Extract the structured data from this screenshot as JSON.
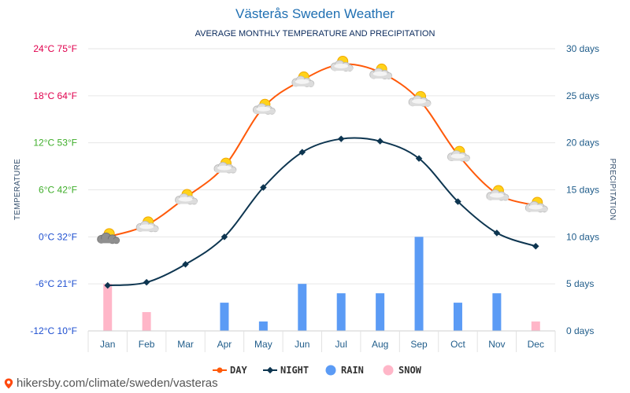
{
  "chart_data": {
    "type": "line",
    "title": "Västerås Sweden Weather",
    "subtitle": "AVERAGE MONTHLY TEMPERATURE AND PRECIPITATION",
    "categories": [
      "Jan",
      "Feb",
      "Mar",
      "Apr",
      "May",
      "Jun",
      "Jul",
      "Aug",
      "Sep",
      "Oct",
      "Nov",
      "Dec"
    ],
    "series": [
      {
        "name": "DAY",
        "unit": "°C",
        "values": [
          0,
          1.5,
          5,
          9,
          16.5,
          20,
          22,
          21,
          17.5,
          10.5,
          5.5,
          4
        ]
      },
      {
        "name": "NIGHT",
        "unit": "°C",
        "values": [
          -6.2,
          -5.8,
          -3.5,
          0,
          6.3,
          10.8,
          12.5,
          12.2,
          10,
          4.5,
          0.5,
          -1.2
        ]
      },
      {
        "name": "RAIN",
        "unit": "days",
        "values": [
          0,
          0,
          0,
          3,
          1,
          5,
          4,
          4,
          10,
          3,
          4,
          0
        ]
      },
      {
        "name": "SNOW",
        "unit": "days",
        "values": [
          5,
          2,
          0,
          0,
          0,
          0,
          0,
          0,
          0,
          0,
          0,
          1
        ]
      }
    ],
    "left_axis": {
      "title": "TEMPERATURE",
      "ylim": [
        -12,
        24
      ],
      "ticks": [
        {
          "value": 24,
          "label": "24°C 75°F",
          "color": "#e0004d"
        },
        {
          "value": 18,
          "label": "18°C 64°F",
          "color": "#e0004d"
        },
        {
          "value": 12,
          "label": "12°C 53°F",
          "color": "#3fae2a"
        },
        {
          "value": 6,
          "label": "6°C 42°F",
          "color": "#3fae2a"
        },
        {
          "value": 0,
          "label": "0°C 32°F",
          "color": "#1e4fd0"
        },
        {
          "value": -6,
          "label": "-6°C 21°F",
          "color": "#1e4fd0"
        },
        {
          "value": -12,
          "label": "-12°C 10°F",
          "color": "#1e4fd0"
        }
      ]
    },
    "right_axis": {
      "title": "PRECIPITATION",
      "ylim": [
        0,
        30
      ],
      "ticks": [
        {
          "value": 30,
          "label": "30 days"
        },
        {
          "value": 25,
          "label": "25 days"
        },
        {
          "value": 20,
          "label": "20 days"
        },
        {
          "value": 15,
          "label": "15 days"
        },
        {
          "value": 10,
          "label": "10 days"
        },
        {
          "value": 5,
          "label": "5 days"
        },
        {
          "value": 0,
          "label": "0 days"
        }
      ]
    },
    "legend": {
      "placement": "bottom",
      "items": [
        {
          "name": "DAY",
          "label": "DAY",
          "color": "#ff5a0a",
          "marker": "line-circle"
        },
        {
          "name": "NIGHT",
          "label": "NIGHT",
          "color": "#0d3550",
          "marker": "line-diamond"
        },
        {
          "name": "RAIN",
          "label": "RAIN",
          "color": "#5b9bf5",
          "marker": "circle"
        },
        {
          "name": "SNOW",
          "label": "SNOW",
          "color": "#ffb6c8",
          "marker": "circle"
        }
      ]
    },
    "colors": {
      "day": "#ff5a0a",
      "night": "#0d3550",
      "rain": "#5b9bf5",
      "snow": "#ffb6c8",
      "grid": "#e6e6e6"
    },
    "weather_icons": [
      "cloudy-sun-icon",
      "partly-sunny-icon",
      "partly-sunny-icon",
      "partly-sunny-icon",
      "partly-sunny-icon",
      "partly-sunny-icon",
      "partly-sunny-icon",
      "partly-sunny-icon",
      "partly-sunny-icon",
      "partly-sunny-icon",
      "partly-sunny-icon",
      "partly-sunny-icon"
    ]
  },
  "footer": {
    "url": "hikersby.com/climate/sweden/vasteras",
    "icon": "location-pin-icon"
  }
}
